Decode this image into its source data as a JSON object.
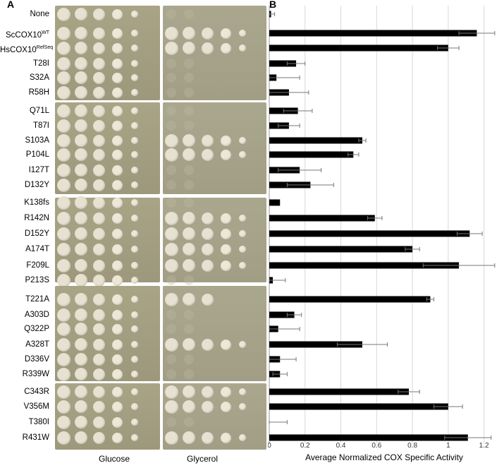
{
  "panels": {
    "a": "A",
    "b": "B"
  },
  "conditions": {
    "glucose": "Glucose",
    "glycerol": "Glycerol"
  },
  "rows": [
    {
      "name": "None",
      "sup": ""
    },
    {
      "name": "ScCOX10",
      "sup": "WT"
    },
    {
      "name": "HsCOX10",
      "sup": "RefSeq"
    },
    {
      "name": "T28I",
      "sup": ""
    },
    {
      "name": "S32A",
      "sup": ""
    },
    {
      "name": "R58H",
      "sup": ""
    },
    {
      "name": "Q71L",
      "sup": ""
    },
    {
      "name": "T87I",
      "sup": ""
    },
    {
      "name": "S103A",
      "sup": ""
    },
    {
      "name": "P104L",
      "sup": ""
    },
    {
      "name": "I127T",
      "sup": ""
    },
    {
      "name": "D132Y",
      "sup": ""
    },
    {
      "name": "K138fs",
      "sup": ""
    },
    {
      "name": "R142N",
      "sup": ""
    },
    {
      "name": "D152Y",
      "sup": ""
    },
    {
      "name": "A174T",
      "sup": ""
    },
    {
      "name": "F209L",
      "sup": ""
    },
    {
      "name": "P213S",
      "sup": ""
    },
    {
      "name": "T221A",
      "sup": ""
    },
    {
      "name": "A303D",
      "sup": ""
    },
    {
      "name": "Q322P",
      "sup": ""
    },
    {
      "name": "A328T",
      "sup": ""
    },
    {
      "name": "D336V",
      "sup": ""
    },
    {
      "name": "R339W",
      "sup": ""
    },
    {
      "name": "C343R",
      "sup": ""
    },
    {
      "name": "V356M",
      "sup": ""
    },
    {
      "name": "T380I",
      "sup": ""
    },
    {
      "name": "R431W",
      "sup": ""
    }
  ],
  "growth": {
    "glucose": [
      5,
      5,
      5,
      5,
      5,
      5,
      5,
      5,
      5,
      5,
      5,
      5,
      5,
      5,
      5,
      5,
      5,
      5,
      5,
      5,
      5,
      5,
      5,
      5,
      5,
      5,
      5,
      5
    ],
    "glycerol": [
      0,
      5,
      5,
      0,
      0,
      0,
      0,
      0,
      5,
      5,
      0,
      0,
      0,
      5,
      5,
      5,
      5,
      0,
      3,
      0,
      0,
      5,
      0,
      0,
      5,
      5,
      0,
      5
    ]
  },
  "colors": {
    "plate": "#b3ae8f",
    "plate_dark": "#98947a",
    "spot": "#ede8d8",
    "bar": "#000000"
  },
  "chart_data": {
    "type": "bar",
    "orientation": "horizontal",
    "xlabel": "Average Normalized COX Specific Activity",
    "xlim": [
      0,
      1.3
    ],
    "xticks": [
      0,
      0.2,
      0.4,
      0.6,
      0.8,
      1,
      1.2
    ],
    "xtick_labels": [
      "0",
      "0.2",
      "0.4",
      "0.6",
      "0.8",
      "1",
      "1.2"
    ],
    "grid": true,
    "categories": [
      "None",
      "ScCOX10 WT",
      "HsCOX10 RefSeq",
      "T28I",
      "S32A",
      "R58H",
      "Q71L",
      "T87I",
      "S103A",
      "P104L",
      "I127T",
      "D132Y",
      "K138fs",
      "R142N",
      "D152Y",
      "A174T",
      "F209L",
      "P213S",
      "T221A",
      "A303D",
      "Q322P",
      "A328T",
      "D336V",
      "R339W",
      "C343R",
      "V356M",
      "T380I",
      "R431W"
    ],
    "values": [
      0.01,
      1.16,
      1.0,
      0.15,
      0.04,
      0.11,
      0.16,
      0.11,
      0.52,
      0.47,
      0.17,
      0.23,
      0.06,
      0.59,
      1.12,
      0.8,
      1.06,
      0.02,
      0.9,
      0.14,
      0.05,
      0.52,
      0.06,
      0.06,
      0.78,
      1.0,
      0.0,
      1.11
    ],
    "errors": [
      0.02,
      0.1,
      0.06,
      0.05,
      0.13,
      0.11,
      0.08,
      0.06,
      0.02,
      0.03,
      0.12,
      0.13,
      0.0,
      0.04,
      0.07,
      0.04,
      0.2,
      0.07,
      0.02,
      0.04,
      0.12,
      0.14,
      0.09,
      0.04,
      0.06,
      0.08,
      0.1,
      0.13
    ]
  }
}
